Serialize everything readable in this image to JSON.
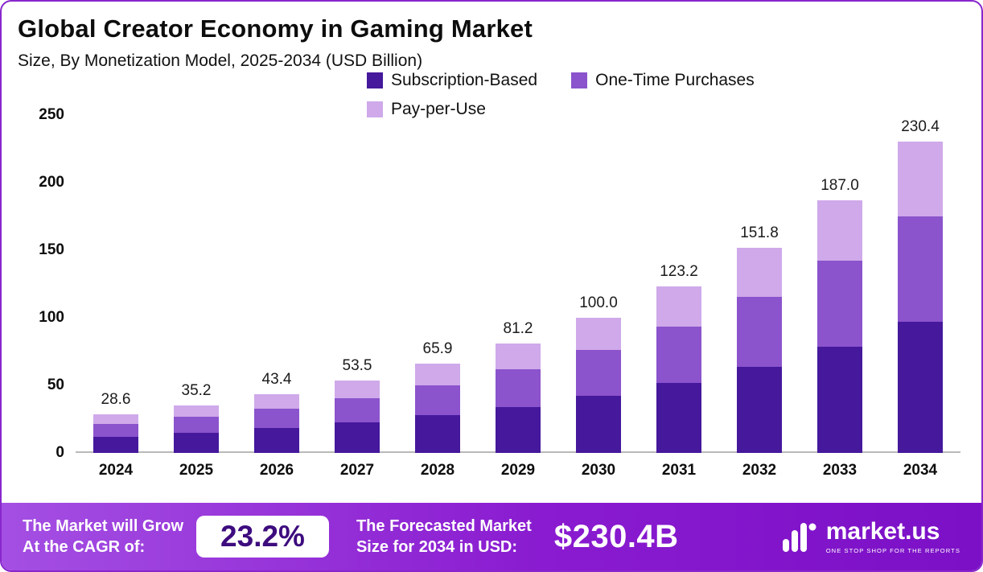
{
  "chart_data": {
    "type": "bar",
    "stacked": true,
    "title": "Global Creator Economy in Gaming Market",
    "subtitle": "Size, By Monetization Model, 2025-2034 (USD Billion)",
    "categories": [
      "2024",
      "2025",
      "2026",
      "2027",
      "2028",
      "2029",
      "2030",
      "2031",
      "2032",
      "2033",
      "2034"
    ],
    "totals": [
      "28.6",
      "35.2",
      "43.4",
      "53.5",
      "65.9",
      "81.2",
      "100.0",
      "123.2",
      "151.8",
      "187.0",
      "230.4"
    ],
    "series": [
      {
        "name": "Subscription-Based",
        "color": "#45189c",
        "values": [
          12.0,
          14.8,
          18.2,
          22.5,
          27.7,
          34.1,
          42.0,
          51.7,
          63.8,
          78.5,
          96.8
        ]
      },
      {
        "name": "One-Time Purchases",
        "color": "#8b53cc",
        "values": [
          9.7,
          12.0,
          14.8,
          18.2,
          22.4,
          27.6,
          34.0,
          41.9,
          51.6,
          63.6,
          78.3
        ]
      },
      {
        "name": "Pay-per-Use",
        "color": "#cfa9ea",
        "values": [
          6.9,
          8.4,
          10.4,
          12.8,
          15.8,
          19.5,
          24.0,
          29.6,
          36.4,
          44.9,
          55.3
        ]
      }
    ],
    "ylim": [
      0,
      250
    ],
    "yticks": [
      0,
      50,
      100,
      150,
      200,
      250
    ],
    "grid": false,
    "legend_position": "top-center"
  },
  "banner": {
    "cagr_label_line1": "The Market will Grow",
    "cagr_label_line2": "At the CAGR of:",
    "cagr_value": "23.2%",
    "forecast_label_line1": "The Forecasted Market",
    "forecast_label_line2": "Size for 2034 in USD:",
    "forecast_value": "$230.4B",
    "brand": "market.us",
    "brand_tagline": "ONE STOP SHOP FOR THE REPORTS"
  },
  "colors": {
    "border": "#8826cc",
    "banner_gradient_start": "#a44fe3",
    "banner_gradient_end": "#7b10c6",
    "pill_text": "#3e0c7e",
    "axis_line": "#b9b9b9"
  }
}
